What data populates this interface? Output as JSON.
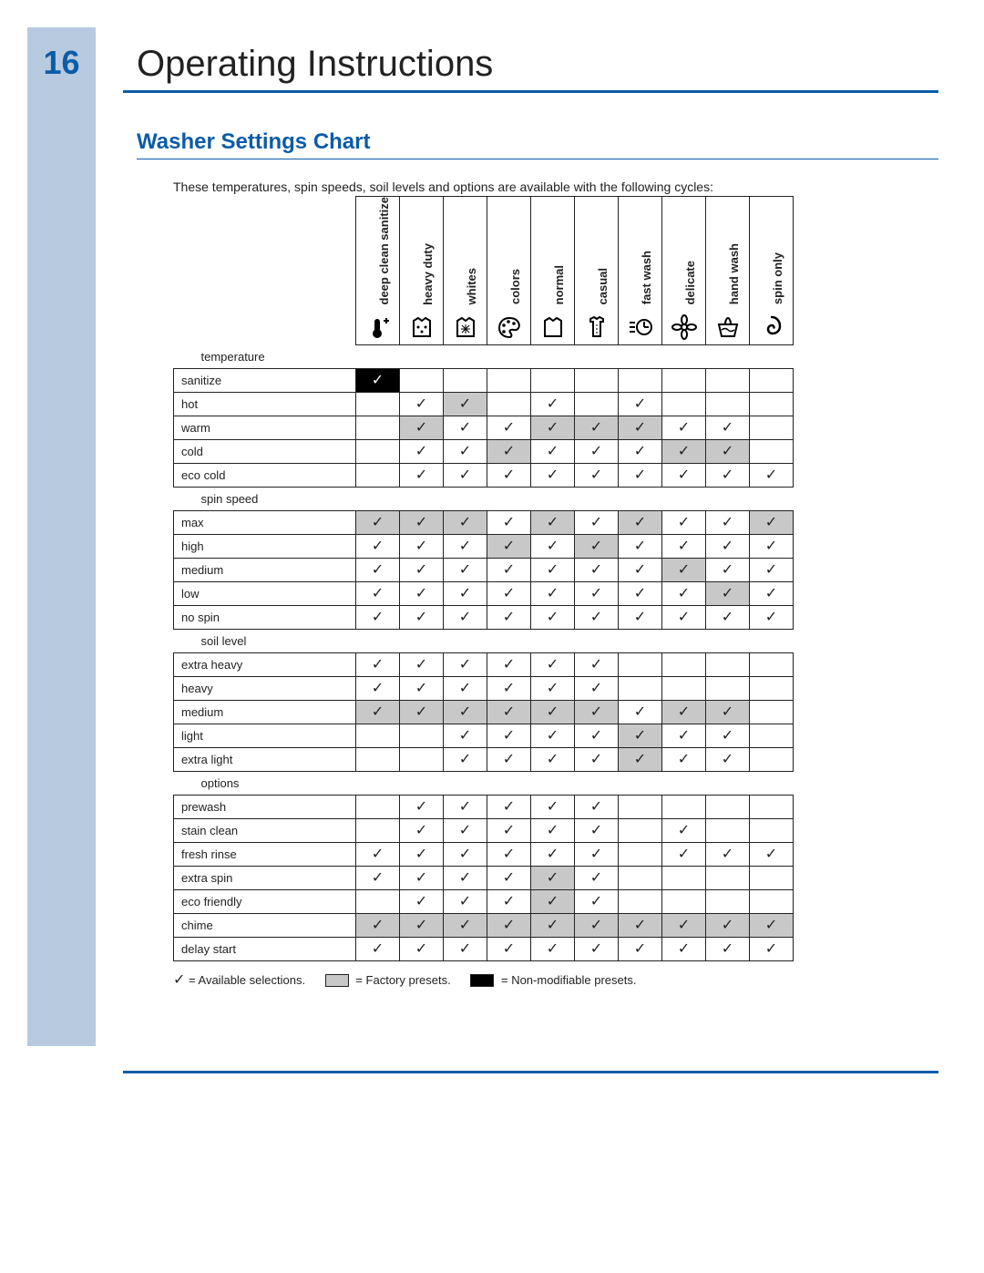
{
  "page_number": "16",
  "main_title": "Operating Instructions",
  "section_title": "Washer Settings Chart",
  "intro": "These temperatures, spin speeds, soil levels and options are available with the following cycles:",
  "colors": {
    "accent": "#0b5ca8",
    "stripe": "#b8cae0",
    "grey": "#c8c8c8",
    "black": "#000000",
    "text": "#222222"
  },
  "legend": {
    "available": "= Available selections.",
    "factory": "= Factory presets.",
    "nonmod": "= Non-modifiable presets."
  },
  "cycles": [
    {
      "key": "deep_clean",
      "label": "deep clean sanitize"
    },
    {
      "key": "heavy_duty",
      "label": "heavy duty"
    },
    {
      "key": "whites",
      "label": "whites"
    },
    {
      "key": "colors",
      "label": "colors"
    },
    {
      "key": "normal",
      "label": "normal"
    },
    {
      "key": "casual",
      "label": "casual"
    },
    {
      "key": "fast_wash",
      "label": "fast wash"
    },
    {
      "key": "delicate",
      "label": "delicate"
    },
    {
      "key": "hand_wash",
      "label": "hand wash"
    },
    {
      "key": "spin_only",
      "label": "spin only"
    }
  ],
  "groups": [
    {
      "label": "temperature",
      "rows": [
        {
          "label": "sanitize",
          "cells": [
            "B",
            "",
            "",
            "",
            "",
            "",
            "",
            "",
            "",
            ""
          ]
        },
        {
          "label": "hot",
          "cells": [
            "",
            "A",
            "G",
            "",
            "A",
            "",
            "A",
            "",
            "",
            ""
          ]
        },
        {
          "label": "warm",
          "cells": [
            "",
            "G",
            "A",
            "A",
            "G",
            "G",
            "G",
            "A",
            "A",
            ""
          ]
        },
        {
          "label": "cold",
          "cells": [
            "",
            "A",
            "A",
            "G",
            "A",
            "A",
            "A",
            "G",
            "G",
            ""
          ]
        },
        {
          "label": "eco cold",
          "cells": [
            "",
            "A",
            "A",
            "A",
            "A",
            "A",
            "A",
            "A",
            "A",
            "A"
          ]
        }
      ]
    },
    {
      "label": "spin speed",
      "rows": [
        {
          "label": "max",
          "cells": [
            "G",
            "G",
            "G",
            "A",
            "G",
            "A",
            "G",
            "A",
            "A",
            "G"
          ]
        },
        {
          "label": "high",
          "cells": [
            "A",
            "A",
            "A",
            "G",
            "A",
            "G",
            "A",
            "A",
            "A",
            "A"
          ]
        },
        {
          "label": "medium",
          "cells": [
            "A",
            "A",
            "A",
            "A",
            "A",
            "A",
            "A",
            "G",
            "A",
            "A"
          ]
        },
        {
          "label": "low",
          "cells": [
            "A",
            "A",
            "A",
            "A",
            "A",
            "A",
            "A",
            "A",
            "G",
            "A"
          ]
        },
        {
          "label": "no spin",
          "cells": [
            "A",
            "A",
            "A",
            "A",
            "A",
            "A",
            "A",
            "A",
            "A",
            "A"
          ]
        }
      ]
    },
    {
      "label": "soil level",
      "rows": [
        {
          "label": "extra heavy",
          "cells": [
            "A",
            "A",
            "A",
            "A",
            "A",
            "A",
            "",
            "",
            "",
            ""
          ]
        },
        {
          "label": "heavy",
          "cells": [
            "A",
            "A",
            "A",
            "A",
            "A",
            "A",
            "",
            "",
            "",
            ""
          ]
        },
        {
          "label": "medium",
          "cells": [
            "G",
            "G",
            "G",
            "G",
            "G",
            "G",
            "A",
            "G",
            "G",
            ""
          ]
        },
        {
          "label": "light",
          "cells": [
            "",
            "",
            "A",
            "A",
            "A",
            "A",
            "G",
            "A",
            "A",
            ""
          ]
        },
        {
          "label": "extra light",
          "cells": [
            "",
            "",
            "A",
            "A",
            "A",
            "A",
            "G",
            "A",
            "A",
            ""
          ]
        }
      ]
    },
    {
      "label": "options",
      "rows": [
        {
          "label": "prewash",
          "cells": [
            "",
            "A",
            "A",
            "A",
            "A",
            "A",
            "",
            "",
            "",
            ""
          ]
        },
        {
          "label": "stain clean",
          "cells": [
            "",
            "A",
            "A",
            "A",
            "A",
            "A",
            "",
            "A",
            "",
            ""
          ]
        },
        {
          "label": "fresh rinse",
          "cells": [
            "A",
            "A",
            "A",
            "A",
            "A",
            "A",
            "",
            "A",
            "A",
            "A"
          ]
        },
        {
          "label": "extra spin",
          "cells": [
            "A",
            "A",
            "A",
            "A",
            "G",
            "A",
            "",
            "",
            "",
            ""
          ]
        },
        {
          "label": "eco friendly",
          "cells": [
            "",
            "A",
            "A",
            "A",
            "G",
            "A",
            "",
            "",
            "",
            ""
          ]
        },
        {
          "label": "chime",
          "cells": [
            "G",
            "G",
            "G",
            "G",
            "G",
            "G",
            "G",
            "G",
            "G",
            "G"
          ]
        },
        {
          "label": "delay start",
          "cells": [
            "A",
            "A",
            "A",
            "A",
            "A",
            "A",
            "A",
            "A",
            "A",
            "A"
          ]
        }
      ]
    }
  ],
  "cell_styles": {
    "A": {
      "bg": "",
      "mark": "✓"
    },
    "G": {
      "bg": "bg-grey",
      "mark": "✓"
    },
    "B": {
      "bg": "bg-black",
      "mark": "✓"
    },
    "": {
      "bg": "",
      "mark": ""
    }
  }
}
